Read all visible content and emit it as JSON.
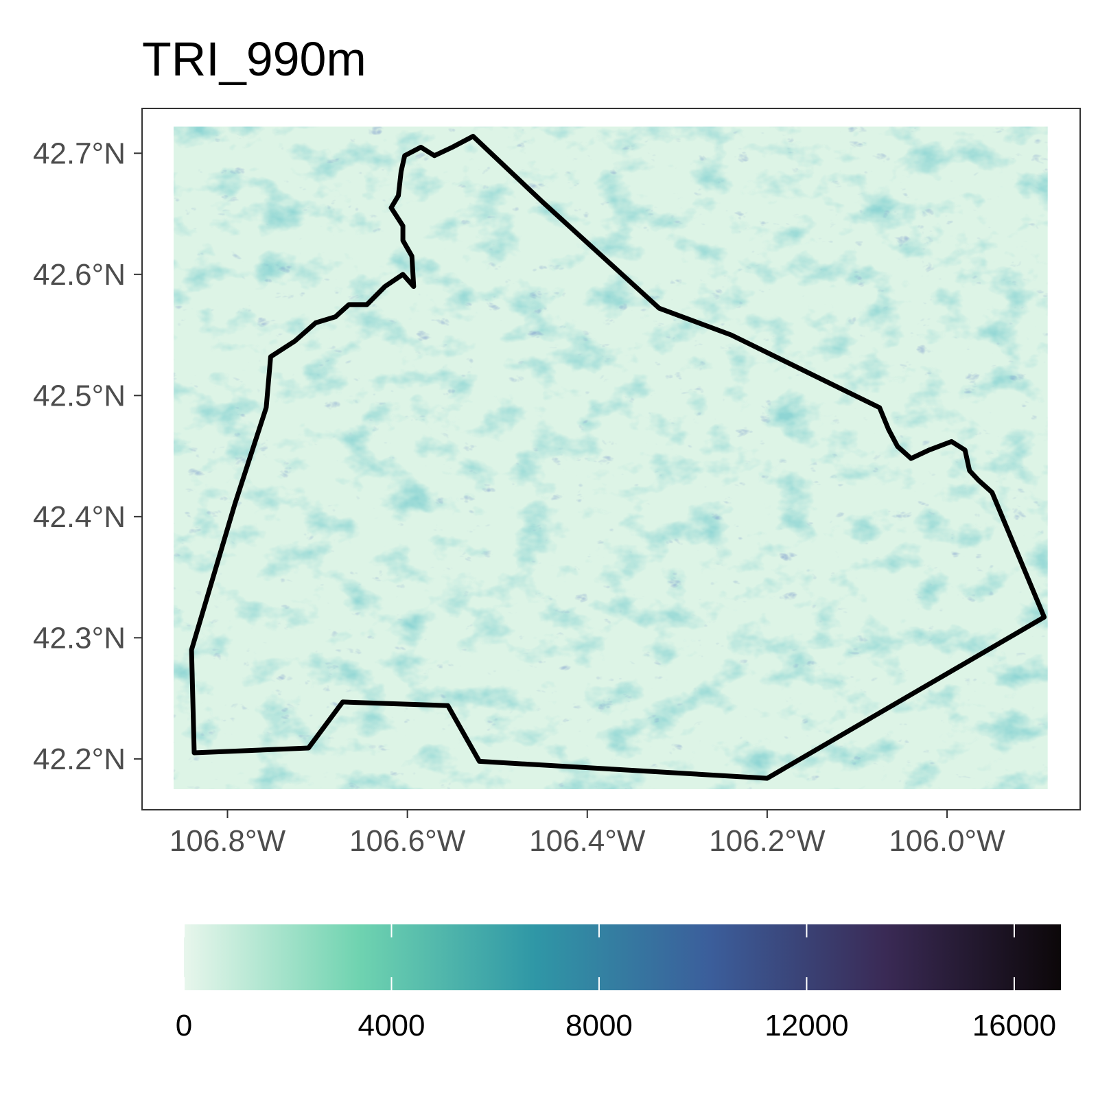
{
  "chart_data": {
    "type": "heatmap",
    "title": "TRI_990m",
    "xlabel": "",
    "ylabel": "",
    "x_ticks": [
      {
        "value": -106.8,
        "label": "106.8°W"
      },
      {
        "value": -106.6,
        "label": "106.6°W"
      },
      {
        "value": -106.4,
        "label": "106.4°W"
      },
      {
        "value": -106.2,
        "label": "106.2°W"
      },
      {
        "value": -106.0,
        "label": "106.0°W"
      }
    ],
    "y_ticks": [
      {
        "value": 42.2,
        "label": "42.2°N"
      },
      {
        "value": 42.3,
        "label": "42.3°N"
      },
      {
        "value": 42.4,
        "label": "42.4°N"
      },
      {
        "value": 42.5,
        "label": "42.5°N"
      },
      {
        "value": 42.6,
        "label": "42.6°N"
      },
      {
        "value": 42.7,
        "label": "42.7°N"
      }
    ],
    "xlim": [
      -106.895,
      -105.852
    ],
    "ylim": [
      42.158,
      42.737
    ],
    "raster_extent": {
      "lon": [
        -106.86,
        -105.888
      ],
      "lat": [
        42.175,
        42.722
      ]
    },
    "grid": false,
    "legend": {
      "position": "bottom",
      "type": "colorbar",
      "min": 0,
      "max": 16900,
      "ticks": [
        0,
        4000,
        8000,
        12000,
        16000
      ],
      "tick_labels": [
        "0",
        "4000",
        "8000",
        "12000",
        "16000"
      ],
      "colors": [
        "#e8f6ec",
        "#6fd3b0",
        "#2f97a6",
        "#3b5e9b",
        "#3a2a55",
        "#0c0709"
      ]
    },
    "boundary_polygon": [
      [
        -106.527,
        42.714
      ],
      [
        -106.55,
        42.705
      ],
      [
        -106.57,
        42.698
      ],
      [
        -106.585,
        42.705
      ],
      [
        -106.603,
        42.698
      ],
      [
        -106.607,
        42.685
      ],
      [
        -106.61,
        42.665
      ],
      [
        -106.618,
        42.655
      ],
      [
        -106.605,
        42.64
      ],
      [
        -106.605,
        42.628
      ],
      [
        -106.595,
        42.615
      ],
      [
        -106.593,
        42.59
      ],
      [
        -106.605,
        42.6
      ],
      [
        -106.625,
        42.59
      ],
      [
        -106.645,
        42.575
      ],
      [
        -106.665,
        42.575
      ],
      [
        -106.68,
        42.565
      ],
      [
        -106.702,
        42.56
      ],
      [
        -106.725,
        42.545
      ],
      [
        -106.752,
        42.532
      ],
      [
        -106.757,
        42.49
      ],
      [
        -106.792,
        42.41
      ],
      [
        -106.84,
        42.29
      ],
      [
        -106.837,
        42.205
      ],
      [
        -106.71,
        42.209
      ],
      [
        -106.672,
        42.247
      ],
      [
        -106.555,
        42.244
      ],
      [
        -106.52,
        42.198
      ],
      [
        -106.2,
        42.184
      ],
      [
        -105.892,
        42.317
      ],
      [
        -105.95,
        42.42
      ],
      [
        -105.965,
        42.43
      ],
      [
        -105.975,
        42.438
      ],
      [
        -105.98,
        42.455
      ],
      [
        -105.995,
        42.462
      ],
      [
        -106.02,
        42.455
      ],
      [
        -106.04,
        42.448
      ],
      [
        -106.055,
        42.458
      ],
      [
        -106.065,
        42.472
      ],
      [
        -106.075,
        42.49
      ],
      [
        -106.24,
        42.55
      ],
      [
        -106.32,
        42.572
      ],
      [
        -106.45,
        42.66
      ],
      [
        -106.527,
        42.714
      ]
    ]
  }
}
